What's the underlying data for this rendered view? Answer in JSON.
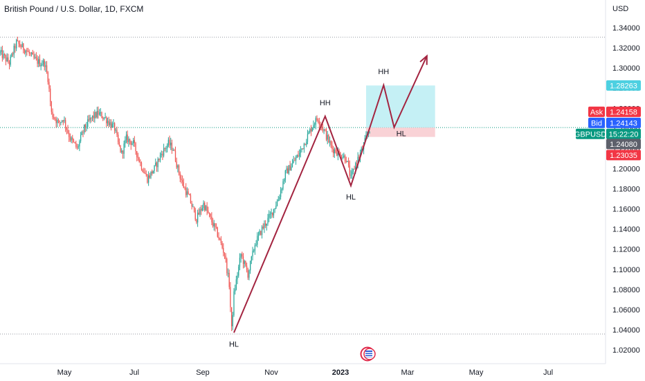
{
  "header": {
    "title": "British Pound / U.S. Dollar, 1D, FXCM"
  },
  "colors": {
    "up": "#26a69a",
    "down": "#ef5350",
    "projection_line": "#a32440",
    "target_zone": "#b2ebf2",
    "stop_zone": "#f8cdd2",
    "ask_tag": "#f23645",
    "bid_tag": "#2962ff",
    "symbol_tag": "#089981",
    "countdown_tag": "#089981",
    "price_tag_gray": "#5d606b",
    "price_tag_red": "#f23645",
    "target_tag": "#4dd0e1"
  },
  "chart_data": {
    "type": "candlestick",
    "symbol": "GBPUSD",
    "timeframe": "1D",
    "currency": "USD",
    "x_tick_labels": [
      "May",
      "Jul",
      "Sep",
      "Nov",
      "2023",
      "Mar",
      "May",
      "Jul"
    ],
    "y_tick_labels": [
      "1.34000",
      "1.32000",
      "1.30000",
      "1.28000",
      "1.26000",
      "1.24000",
      "1.22000",
      "1.20000",
      "1.18000",
      "1.16000",
      "1.14000",
      "1.12000",
      "1.10000",
      "1.08000",
      "1.06000",
      "1.04000",
      "1.02000"
    ],
    "ylim": [
      1.013,
      1.352
    ],
    "grid": false,
    "price_path": [
      [
        0,
        1.315
      ],
      [
        8,
        1.305
      ],
      [
        14,
        1.325
      ],
      [
        22,
        1.318
      ],
      [
        28,
        1.31
      ],
      [
        34,
        1.305
      ],
      [
        38,
        1.305
      ],
      [
        41,
        1.29
      ],
      [
        44,
        1.255
      ],
      [
        50,
        1.245
      ],
      [
        54,
        1.25
      ],
      [
        60,
        1.23
      ],
      [
        66,
        1.22
      ],
      [
        72,
        1.24
      ],
      [
        78,
        1.25
      ],
      [
        84,
        1.255
      ],
      [
        90,
        1.25
      ],
      [
        94,
        1.245
      ],
      [
        98,
        1.24
      ],
      [
        101,
        1.225
      ],
      [
        104,
        1.215
      ],
      [
        108,
        1.23
      ],
      [
        114,
        1.225
      ],
      [
        120,
        1.205
      ],
      [
        126,
        1.19
      ],
      [
        132,
        1.2
      ],
      [
        138,
        1.215
      ],
      [
        144,
        1.225
      ],
      [
        148,
        1.22
      ],
      [
        152,
        1.2
      ],
      [
        156,
        1.185
      ],
      [
        162,
        1.17
      ],
      [
        168,
        1.15
      ],
      [
        174,
        1.165
      ],
      [
        180,
        1.15
      ],
      [
        186,
        1.135
      ],
      [
        192,
        1.115
      ],
      [
        196,
        1.085
      ],
      [
        198,
        1.04
      ],
      [
        200,
        1.075
      ],
      [
        206,
        1.115
      ],
      [
        212,
        1.095
      ],
      [
        218,
        1.125
      ],
      [
        224,
        1.14
      ],
      [
        232,
        1.155
      ],
      [
        238,
        1.17
      ],
      [
        244,
        1.195
      ],
      [
        250,
        1.205
      ],
      [
        256,
        1.215
      ],
      [
        262,
        1.23
      ],
      [
        268,
        1.245
      ],
      [
        272,
        1.25
      ],
      [
        278,
        1.235
      ],
      [
        284,
        1.22
      ],
      [
        290,
        1.215
      ],
      [
        296,
        1.21
      ],
      [
        300,
        1.19
      ],
      [
        304,
        1.205
      ],
      [
        310,
        1.22
      ],
      [
        316,
        1.24
      ]
    ],
    "last_close": 1.2408,
    "projection_path": [
      [
        200,
        1.037
      ],
      [
        278,
        1.252
      ],
      [
        300,
        1.183
      ],
      [
        328,
        1.283
      ],
      [
        337,
        1.241
      ],
      [
        365,
        1.312
      ]
    ],
    "target_zone": {
      "x": [
        313,
        372
      ],
      "y": [
        1.2408,
        1.2826
      ]
    },
    "stop_zone": {
      "x": [
        313,
        372
      ],
      "y": [
        1.2315,
        1.2408
      ]
    },
    "annotations": [
      {
        "text": "HL",
        "x": 200,
        "y": 1.037,
        "pos": "below"
      },
      {
        "text": "HH",
        "x": 278,
        "y": 1.252,
        "pos": "above"
      },
      {
        "text": "HL",
        "x": 300,
        "y": 1.183,
        "pos": "below"
      },
      {
        "text": "HH",
        "x": 328,
        "y": 1.283,
        "pos": "above"
      },
      {
        "text": "HL",
        "x": 343,
        "y": 1.2352,
        "pos": "inside"
      }
    ],
    "dotted_levels": [
      1.3305,
      1.2408,
      1.0357
    ],
    "price_tags": [
      {
        "label": "",
        "value": "1.28263",
        "price": 1.28263,
        "color_key": "target_tag"
      },
      {
        "label": "Ask",
        "value": "1.24158",
        "price": 1.2565,
        "color_key": "ask_tag"
      },
      {
        "label": "Bid",
        "value": "1.24143",
        "price": 1.2455,
        "color_key": "bid_tag"
      },
      {
        "label": "GBPUSD",
        "value": "15:22:20",
        "price": 1.2345,
        "color_key": "symbol_tag"
      },
      {
        "label": "",
        "value": "1.24080",
        "price": 1.2245,
        "color_key": "price_tag_gray"
      },
      {
        "label": "",
        "value": "1.23035",
        "price": 1.2135,
        "color_key": "price_tag_red"
      }
    ]
  }
}
